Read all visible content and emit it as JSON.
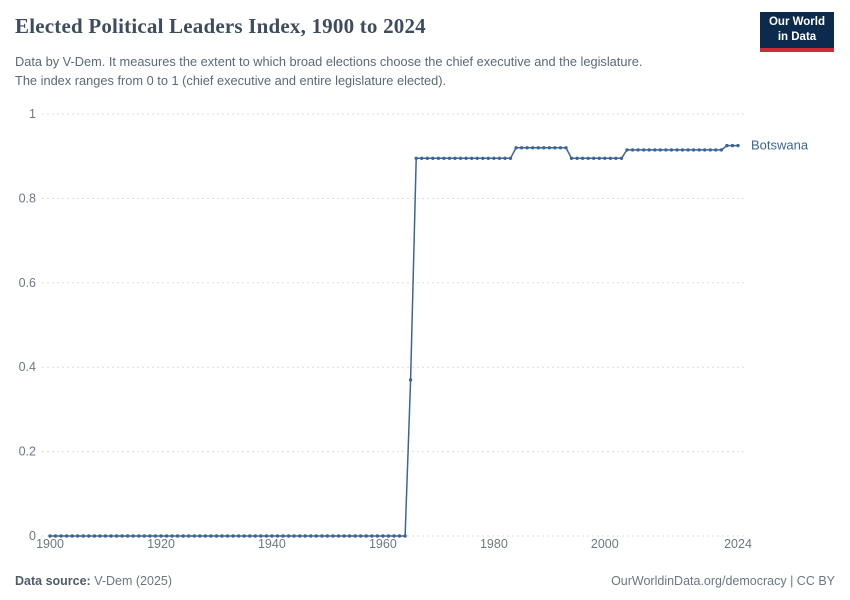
{
  "header": {
    "title": "Elected Political Leaders Index, 1900 to 2024",
    "subtitle_line1": "Data by V-Dem. It measures the extent to which broad elections choose the chief executive and the legislature.",
    "subtitle_line2": "The index ranges from 0 to 1 (chief executive and entire legislature elected).",
    "logo": {
      "line1": "Our World",
      "line2": "in Data"
    }
  },
  "footer": {
    "source_label": "Data source:",
    "source_value": " V-Dem (2025)",
    "right_text": "OurWorldinData.org/democracy | CC BY"
  },
  "chart_data": {
    "type": "line",
    "title": "Elected Political Leaders Index, 1900 to 2024",
    "xlabel": "",
    "ylabel": "",
    "xlim": [
      1900,
      2024
    ],
    "ylim": [
      0,
      1
    ],
    "x_ticks": [
      1900,
      1920,
      1940,
      1960,
      1980,
      2000,
      2024
    ],
    "y_ticks": [
      1,
      0.8,
      0.6,
      0.4,
      0.2,
      0
    ],
    "grid": "horizontal-dashed",
    "grid_color": "#dcdcdc",
    "tick_color": "#6e7882",
    "legend_position": "end-of-line-label",
    "series": [
      {
        "name": "Botswana",
        "color": "#3d6493",
        "segments": [
          {
            "from": 1900,
            "to": 1964,
            "value": 0
          },
          {
            "from": 1965,
            "to": 1965,
            "value": 0.37
          },
          {
            "from": 1966,
            "to": 1983,
            "value": 0.895
          },
          {
            "from": 1984,
            "to": 1993,
            "value": 0.92
          },
          {
            "from": 1994,
            "to": 2003,
            "value": 0.895
          },
          {
            "from": 2004,
            "to": 2021,
            "value": 0.915
          },
          {
            "from": 2022,
            "to": 2024,
            "value": 0.925
          }
        ]
      }
    ]
  }
}
